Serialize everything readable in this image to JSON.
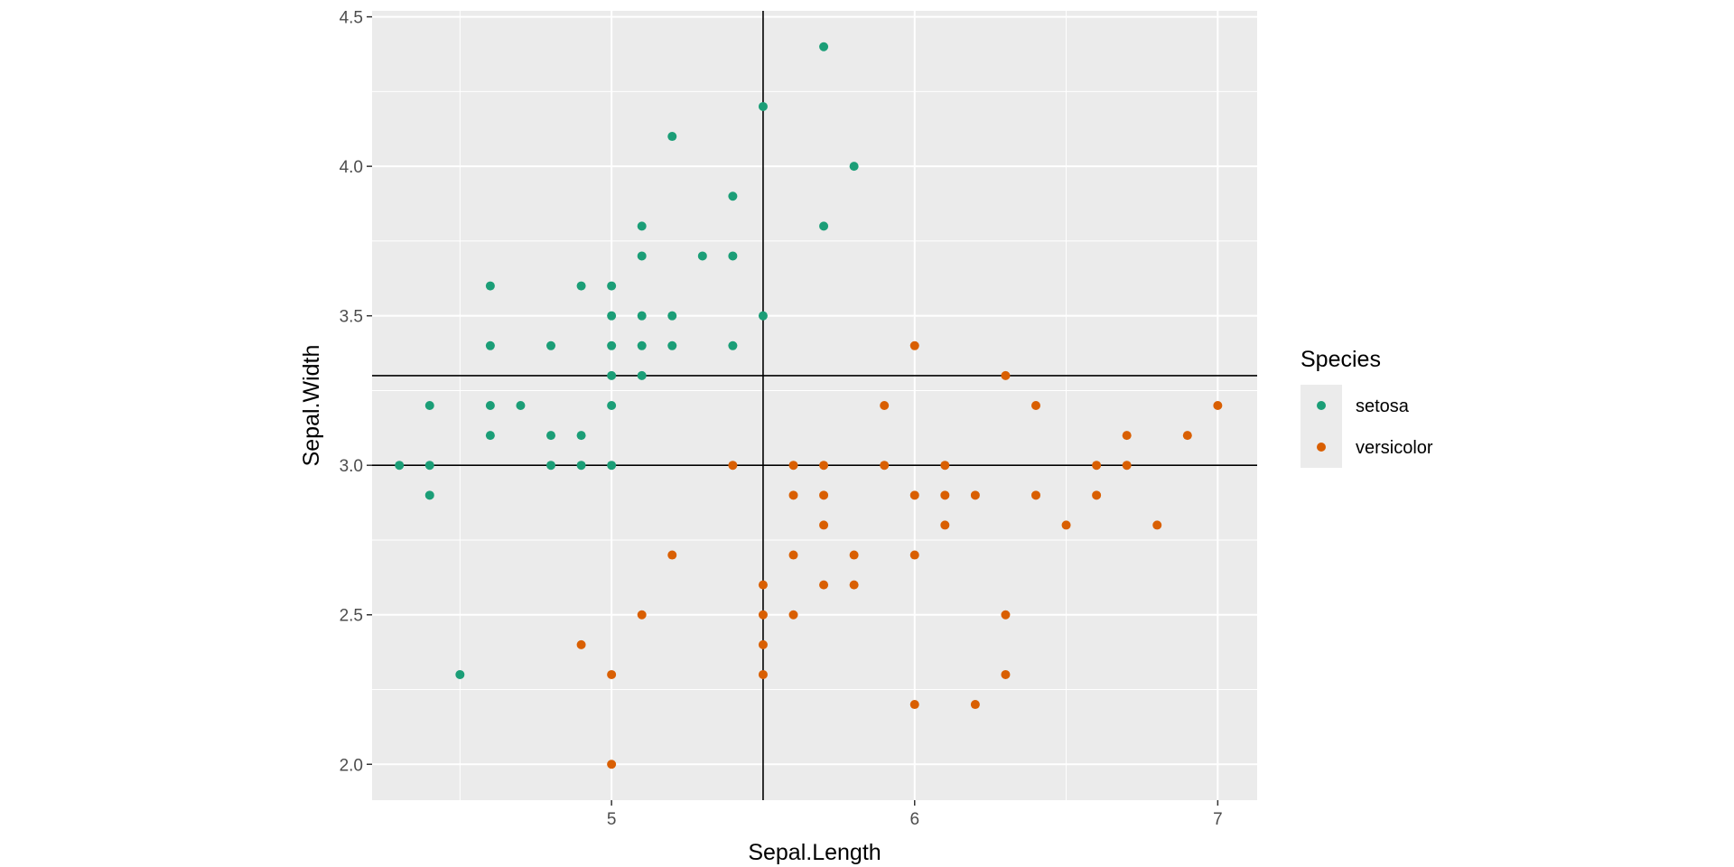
{
  "chart_data": {
    "type": "scatter",
    "xlabel": "Sepal.Length",
    "ylabel": "Sepal.Width",
    "xlim": [
      4.21,
      7.13
    ],
    "ylim": [
      1.88,
      4.52
    ],
    "x_ticks": [
      5,
      6,
      7
    ],
    "x_tick_labels": [
      "5",
      "6",
      "7"
    ],
    "y_ticks": [
      2.0,
      2.5,
      3.0,
      3.5,
      4.0,
      4.5
    ],
    "y_tick_labels": [
      "2.0",
      "2.5",
      "3.0",
      "3.5",
      "4.0",
      "4.5"
    ],
    "grid": true,
    "panel_background": "#ebebeb",
    "reference_lines": {
      "vertical": [
        5.5
      ],
      "horizontal": [
        3.0,
        3.3
      ],
      "color": "#000000"
    },
    "legend": {
      "title": "Species",
      "position": "right",
      "entries": [
        {
          "label": "setosa",
          "color": "#1b9e77"
        },
        {
          "label": "versicolor",
          "color": "#d95f02"
        }
      ]
    },
    "series": [
      {
        "name": "setosa",
        "color": "#1b9e77",
        "points": [
          [
            5.7,
            4.4
          ],
          [
            5.5,
            4.2
          ],
          [
            5.2,
            4.1
          ],
          [
            5.8,
            4.0
          ],
          [
            5.4,
            3.9
          ],
          [
            5.1,
            3.8
          ],
          [
            5.7,
            3.8
          ],
          [
            5.1,
            3.7
          ],
          [
            5.3,
            3.7
          ],
          [
            5.4,
            3.7
          ],
          [
            4.6,
            3.6
          ],
          [
            4.9,
            3.6
          ],
          [
            5.0,
            3.6
          ],
          [
            5.0,
            3.5
          ],
          [
            5.1,
            3.5
          ],
          [
            5.2,
            3.5
          ],
          [
            5.5,
            3.5
          ],
          [
            4.6,
            3.4
          ],
          [
            4.8,
            3.4
          ],
          [
            5.0,
            3.4
          ],
          [
            5.1,
            3.4
          ],
          [
            5.2,
            3.4
          ],
          [
            5.4,
            3.4
          ],
          [
            5.0,
            3.3
          ],
          [
            5.1,
            3.3
          ],
          [
            4.4,
            3.2
          ],
          [
            4.6,
            3.2
          ],
          [
            4.7,
            3.2
          ],
          [
            5.0,
            3.2
          ],
          [
            4.6,
            3.1
          ],
          [
            4.8,
            3.1
          ],
          [
            4.9,
            3.1
          ],
          [
            4.3,
            3.0
          ],
          [
            4.4,
            3.0
          ],
          [
            4.8,
            3.0
          ],
          [
            4.9,
            3.0
          ],
          [
            5.0,
            3.0
          ],
          [
            4.4,
            2.9
          ],
          [
            4.5,
            2.3
          ]
        ]
      },
      {
        "name": "versicolor",
        "color": "#d95f02",
        "points": [
          [
            6.0,
            3.4
          ],
          [
            6.3,
            3.3
          ],
          [
            5.9,
            3.2
          ],
          [
            6.4,
            3.2
          ],
          [
            7.0,
            3.2
          ],
          [
            6.7,
            3.1
          ],
          [
            6.9,
            3.1
          ],
          [
            5.4,
            3.0
          ],
          [
            5.6,
            3.0
          ],
          [
            5.7,
            3.0
          ],
          [
            5.9,
            3.0
          ],
          [
            6.1,
            3.0
          ],
          [
            6.6,
            3.0
          ],
          [
            6.7,
            3.0
          ],
          [
            5.6,
            2.9
          ],
          [
            5.7,
            2.9
          ],
          [
            6.0,
            2.9
          ],
          [
            6.1,
            2.9
          ],
          [
            6.2,
            2.9
          ],
          [
            6.4,
            2.9
          ],
          [
            6.6,
            2.9
          ],
          [
            5.7,
            2.8
          ],
          [
            6.1,
            2.8
          ],
          [
            6.5,
            2.8
          ],
          [
            6.8,
            2.8
          ],
          [
            5.2,
            2.7
          ],
          [
            5.6,
            2.7
          ],
          [
            5.8,
            2.7
          ],
          [
            6.0,
            2.7
          ],
          [
            5.5,
            2.6
          ],
          [
            5.7,
            2.6
          ],
          [
            5.8,
            2.6
          ],
          [
            5.1,
            2.5
          ],
          [
            5.5,
            2.5
          ],
          [
            5.6,
            2.5
          ],
          [
            6.3,
            2.5
          ],
          [
            4.9,
            2.4
          ],
          [
            5.5,
            2.4
          ],
          [
            5.0,
            2.3
          ],
          [
            5.5,
            2.3
          ],
          [
            6.3,
            2.3
          ],
          [
            6.0,
            2.2
          ],
          [
            6.2,
            2.2
          ],
          [
            5.0,
            2.0
          ]
        ]
      }
    ]
  }
}
